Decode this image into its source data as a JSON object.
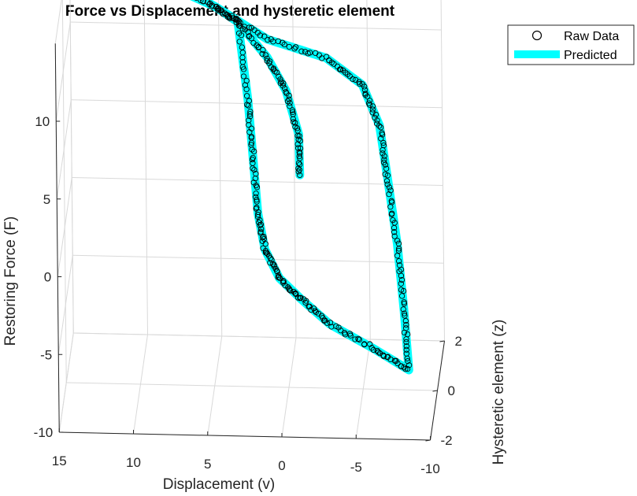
{
  "chart_data": {
    "type": "scatter",
    "title": "Force vs Displacement and hysteretic element",
    "xlabel": "Displacement (v)",
    "ylabel": "Restoring Force (F)",
    "zlabel": "Hysteretic element (z)",
    "xlim": [
      -10,
      15
    ],
    "ylim": [
      -10,
      15
    ],
    "zlim": [
      -2,
      2
    ],
    "xticks": [
      "15",
      "10",
      "5",
      "0",
      "-5",
      "-10"
    ],
    "yticks": [
      "-10",
      "-5",
      "0",
      "5",
      "10"
    ],
    "zticks": [
      "2",
      "0",
      "-2"
    ],
    "grid": true,
    "legend_position": "top-right",
    "legend": [
      "Raw Data",
      "Predicted"
    ],
    "colors": {
      "predicted": "#00ffff",
      "raw": "#000000"
    },
    "series": [
      {
        "name": "Raw Data",
        "marker": "circle",
        "points": [
          [
            -0.8,
            3.2,
            0.3
          ],
          [
            -0.7,
            5.5,
            0.5
          ],
          [
            0.2,
            7.8,
            0.8
          ],
          [
            1.5,
            9.6,
            1.0
          ],
          [
            3.5,
            11.5,
            1.2
          ],
          [
            5.0,
            12.2,
            1.35
          ],
          [
            8.5,
            13.8,
            1.5
          ],
          [
            9.3,
            14.5,
            1.6
          ],
          [
            9.2,
            13.6,
            1.55
          ],
          [
            5.0,
            12.2,
            1.35
          ],
          [
            1.5,
            10.6,
            1.1
          ],
          [
            -2.5,
            9.8,
            0.9
          ],
          [
            -5.0,
            8.6,
            0.6
          ],
          [
            -6.2,
            6.5,
            0.3
          ],
          [
            -6.8,
            3.5,
            0.0
          ],
          [
            -7.5,
            0.0,
            -0.4
          ],
          [
            -8.0,
            -3.5,
            -0.8
          ],
          [
            -8.4,
            -6.8,
            -1.2
          ],
          [
            -6.0,
            -5.8,
            -1.0
          ],
          [
            -3.0,
            -4.6,
            -0.8
          ],
          [
            -1.0,
            -3.5,
            -0.5
          ],
          [
            0.5,
            -2.5,
            -0.3
          ],
          [
            1.5,
            -1.0,
            -0.1
          ],
          [
            2.0,
            1.0,
            0.1
          ],
          [
            2.4,
            4.0,
            0.5
          ],
          [
            2.8,
            7.0,
            0.9
          ],
          [
            3.5,
            11.5,
            1.2
          ]
        ]
      },
      {
        "name": "Predicted",
        "line": "thick",
        "points": [
          [
            -0.8,
            3.2,
            0.3
          ],
          [
            -0.7,
            5.5,
            0.5
          ],
          [
            0.2,
            7.8,
            0.8
          ],
          [
            1.5,
            9.6,
            1.0
          ],
          [
            3.5,
            11.5,
            1.2
          ],
          [
            5.0,
            12.2,
            1.35
          ],
          [
            8.5,
            13.8,
            1.5
          ],
          [
            9.3,
            14.5,
            1.6
          ],
          [
            9.2,
            13.6,
            1.55
          ],
          [
            5.0,
            12.2,
            1.35
          ],
          [
            1.5,
            10.6,
            1.1
          ],
          [
            -2.5,
            9.8,
            0.9
          ],
          [
            -5.0,
            8.6,
            0.6
          ],
          [
            -6.2,
            6.5,
            0.3
          ],
          [
            -6.8,
            3.5,
            0.0
          ],
          [
            -7.5,
            0.0,
            -0.4
          ],
          [
            -8.0,
            -3.5,
            -0.8
          ],
          [
            -8.4,
            -6.8,
            -1.2
          ],
          [
            -6.0,
            -5.8,
            -1.0
          ],
          [
            -3.0,
            -4.6,
            -0.8
          ],
          [
            -1.0,
            -3.5,
            -0.5
          ],
          [
            0.5,
            -2.5,
            -0.3
          ],
          [
            1.5,
            -1.0,
            -0.1
          ],
          [
            2.0,
            1.0,
            0.1
          ],
          [
            2.4,
            4.0,
            0.5
          ],
          [
            2.8,
            7.0,
            0.9
          ],
          [
            3.5,
            11.5,
            1.2
          ]
        ]
      }
    ]
  }
}
